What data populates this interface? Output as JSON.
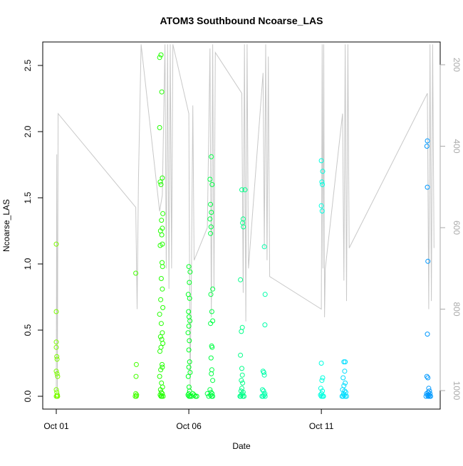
{
  "chart_data": {
    "type": "scatter",
    "title": "ATOM3 Southbound Ncoarse_LAS",
    "xlabel": "Date",
    "ylabel": "Ncoarse_LAS",
    "ylim": [
      0,
      2.62
    ],
    "y_ticks": [
      0.0,
      0.5,
      1.0,
      1.5,
      2.0,
      2.5
    ],
    "y_tick_labels": [
      "0.0",
      "0.5",
      "1.0",
      "1.5",
      "2.0",
      "2.5"
    ],
    "x_range_days": [
      0,
      14
    ],
    "x_ticks": [
      {
        "day": 0,
        "label": "Oct 01"
      },
      {
        "day": 5,
        "label": "Oct 06"
      },
      {
        "day": 10,
        "label": "Oct 11"
      }
    ],
    "secondary_axis": {
      "side": "right",
      "color": "#aaaaaa",
      "reversed": true,
      "range": [
        150,
        1030
      ],
      "ticks": [
        200,
        400,
        600,
        800,
        1000
      ],
      "tick_labels": [
        "200",
        "400",
        "600",
        "800",
        "1000"
      ]
    },
    "secondary_series": {
      "color": "#c8c8c8",
      "points": [
        [
          0.0,
          1000
        ],
        [
          0.02,
          420
        ],
        [
          0.04,
          1000
        ],
        [
          0.05,
          780
        ],
        [
          0.07,
          320
        ],
        [
          3.0,
          550
        ],
        [
          3.05,
          800
        ],
        [
          3.1,
          480
        ],
        [
          3.2,
          150
        ],
        [
          3.9,
          560
        ],
        [
          4.0,
          520
        ],
        [
          4.1,
          150
        ],
        [
          4.15,
          700
        ],
        [
          4.2,
          150
        ],
        [
          4.25,
          750
        ],
        [
          4.3,
          150
        ],
        [
          4.35,
          700
        ],
        [
          4.4,
          150
        ],
        [
          5.0,
          320
        ],
        [
          5.05,
          1000
        ],
        [
          5.1,
          700
        ],
        [
          5.15,
          300
        ],
        [
          5.2,
          680
        ],
        [
          5.7,
          600
        ],
        [
          5.8,
          160
        ],
        [
          5.85,
          820
        ],
        [
          5.9,
          150
        ],
        [
          5.95,
          750
        ],
        [
          6.0,
          170
        ],
        [
          7.0,
          270
        ],
        [
          7.05,
          760
        ],
        [
          7.1,
          150
        ],
        [
          7.15,
          830
        ],
        [
          7.2,
          150
        ],
        [
          7.25,
          700
        ],
        [
          7.8,
          220
        ],
        [
          7.85,
          650
        ],
        [
          7.9,
          150
        ],
        [
          7.95,
          680
        ],
        [
          8.0,
          180
        ],
        [
          8.05,
          720
        ],
        [
          10.0,
          800
        ],
        [
          10.03,
          150
        ],
        [
          10.06,
          700
        ],
        [
          10.09,
          150
        ],
        [
          10.12,
          820
        ],
        [
          10.15,
          700
        ],
        [
          10.8,
          320
        ],
        [
          10.85,
          730
        ],
        [
          10.9,
          150
        ],
        [
          10.95,
          780
        ],
        [
          11.0,
          150
        ],
        [
          11.05,
          650
        ],
        [
          14.0,
          270
        ],
        [
          14.05,
          800
        ],
        [
          14.1,
          150
        ],
        [
          14.15,
          780
        ],
        [
          14.2,
          150
        ],
        [
          14.25,
          650
        ]
      ]
    },
    "series": [
      {
        "color": "#7cfc00",
        "points": [
          [
            0,
            1.15
          ],
          [
            0,
            0.64
          ],
          [
            0,
            0.41
          ],
          [
            0,
            0.37
          ],
          [
            0.02,
            0.3
          ],
          [
            0.03,
            0.28
          ],
          [
            0,
            0.19
          ],
          [
            0.03,
            0.17
          ],
          [
            0.05,
            0.15
          ],
          [
            0,
            0.05
          ],
          [
            0.02,
            0.03
          ],
          [
            0.04,
            0.01
          ],
          [
            0,
            0.0
          ],
          [
            0.03,
            0.0
          ],
          [
            0.05,
            0.0
          ]
        ]
      },
      {
        "color": "#44ff00",
        "points": [
          [
            3.0,
            0.93
          ],
          [
            3.02,
            0.24
          ],
          [
            3.01,
            0.15
          ],
          [
            3.0,
            0.02
          ],
          [
            3.03,
            0.01
          ],
          [
            2.98,
            0.0
          ],
          [
            3.02,
            0.0
          ]
        ]
      },
      {
        "color": "#22ff00",
        "points": [
          [
            3.9,
            2.56
          ],
          [
            3.95,
            2.58
          ],
          [
            3.98,
            2.3
          ],
          [
            3.9,
            2.03
          ],
          [
            4.0,
            1.65
          ],
          [
            3.95,
            1.6
          ],
          [
            3.92,
            1.62
          ],
          [
            4.02,
            1.38
          ],
          [
            3.97,
            1.33
          ],
          [
            4.0,
            1.27
          ],
          [
            3.93,
            1.25
          ],
          [
            3.98,
            1.22
          ],
          [
            4.0,
            1.15
          ],
          [
            3.92,
            1.14
          ],
          [
            3.99,
            1.01
          ],
          [
            4.01,
            0.98
          ],
          [
            3.96,
            0.89
          ],
          [
            4.0,
            0.81
          ],
          [
            3.94,
            0.73
          ],
          [
            4.02,
            0.67
          ],
          [
            3.9,
            0.62
          ],
          [
            3.96,
            0.55
          ],
          [
            4.0,
            0.48
          ],
          [
            3.93,
            0.45
          ],
          [
            3.98,
            0.43
          ],
          [
            4.02,
            0.4
          ],
          [
            3.95,
            0.37
          ],
          [
            3.91,
            0.34
          ],
          [
            3.99,
            0.24
          ],
          [
            4.0,
            0.22
          ],
          [
            3.94,
            0.2
          ],
          [
            3.9,
            0.15
          ],
          [
            3.97,
            0.1
          ],
          [
            4.01,
            0.07
          ],
          [
            3.93,
            0.05
          ],
          [
            3.96,
            0.03
          ],
          [
            4.0,
            0.02
          ],
          [
            3.92,
            0.01
          ],
          [
            3.98,
            0.0
          ],
          [
            4.03,
            0.0
          ],
          [
            3.95,
            0.0
          ]
        ]
      },
      {
        "color": "#00ff22",
        "points": [
          [
            5.0,
            0.98
          ],
          [
            5.05,
            0.94
          ],
          [
            5.02,
            0.86
          ],
          [
            4.98,
            0.77
          ],
          [
            5.03,
            0.74
          ],
          [
            4.99,
            0.64
          ],
          [
            5.01,
            0.6
          ],
          [
            5.04,
            0.57
          ],
          [
            5.0,
            0.53
          ],
          [
            4.97,
            0.48
          ],
          [
            5.02,
            0.42
          ],
          [
            5.0,
            0.35
          ],
          [
            5.03,
            0.26
          ],
          [
            5.0,
            0.22
          ],
          [
            5.05,
            0.18
          ],
          [
            4.98,
            0.15
          ],
          [
            5.01,
            0.07
          ],
          [
            5.03,
            0.04
          ],
          [
            5.0,
            0.02
          ],
          [
            4.97,
            0.01
          ],
          [
            5.05,
            0.0
          ],
          [
            5.01,
            0.0
          ],
          [
            5.1,
            0.0
          ],
          [
            5.15,
            0.02
          ],
          [
            5.2,
            0.01
          ],
          [
            5.25,
            0.0
          ],
          [
            5.3,
            0.0
          ]
        ]
      },
      {
        "color": "#00ff44",
        "points": [
          [
            5.85,
            1.81
          ],
          [
            5.8,
            1.64
          ],
          [
            5.88,
            1.6
          ],
          [
            5.82,
            1.45
          ],
          [
            5.85,
            1.39
          ],
          [
            5.8,
            1.34
          ],
          [
            5.84,
            1.28
          ],
          [
            5.82,
            1.23
          ],
          [
            5.9,
            0.81
          ],
          [
            5.83,
            0.77
          ],
          [
            5.87,
            0.64
          ],
          [
            5.9,
            0.57
          ],
          [
            5.82,
            0.55
          ],
          [
            5.86,
            0.38
          ],
          [
            5.88,
            0.37
          ],
          [
            5.84,
            0.29
          ],
          [
            5.87,
            0.2
          ],
          [
            5.85,
            0.17
          ],
          [
            5.9,
            0.12
          ],
          [
            5.8,
            0.05
          ],
          [
            5.84,
            0.03
          ],
          [
            5.88,
            0.02
          ],
          [
            5.82,
            0.01
          ],
          [
            5.86,
            0.0
          ],
          [
            5.9,
            0.0
          ],
          [
            5.75,
            0.0
          ],
          [
            5.7,
            0.02
          ]
        ]
      },
      {
        "color": "#00ff88",
        "points": [
          [
            7.0,
            1.56
          ],
          [
            7.12,
            1.56
          ],
          [
            7.05,
            1.34
          ],
          [
            7.03,
            1.31
          ],
          [
            7.06,
            1.28
          ],
          [
            6.95,
            0.88
          ],
          [
            7.02,
            0.52
          ],
          [
            6.98,
            0.49
          ],
          [
            6.95,
            0.31
          ],
          [
            7.0,
            0.21
          ],
          [
            7.02,
            0.16
          ],
          [
            6.98,
            0.12
          ],
          [
            7.03,
            0.1
          ],
          [
            7.0,
            0.06
          ],
          [
            6.97,
            0.04
          ],
          [
            7.05,
            0.03
          ],
          [
            7.01,
            0.02
          ],
          [
            6.99,
            0.01
          ],
          [
            7.04,
            0.0
          ],
          [
            6.96,
            0.0
          ],
          [
            7.08,
            0.0
          ],
          [
            6.93,
            0.0
          ]
        ]
      },
      {
        "color": "#00ffaa",
        "points": [
          [
            7.85,
            1.13
          ],
          [
            7.88,
            0.77
          ],
          [
            7.87,
            0.54
          ],
          [
            7.8,
            0.19
          ],
          [
            7.83,
            0.18
          ],
          [
            7.85,
            0.16
          ],
          [
            7.78,
            0.05
          ],
          [
            7.82,
            0.04
          ],
          [
            7.87,
            0.02
          ],
          [
            7.84,
            0.01
          ],
          [
            7.8,
            0.0
          ],
          [
            7.88,
            0.0
          ],
          [
            7.76,
            0.0
          ]
        ]
      },
      {
        "color": "#00ffe0",
        "points": [
          [
            10.0,
            1.78
          ],
          [
            10.05,
            1.7
          ],
          [
            10.02,
            1.62
          ],
          [
            10.04,
            1.6
          ],
          [
            10.0,
            1.44
          ],
          [
            10.03,
            1.4
          ],
          [
            10.0,
            0.25
          ],
          [
            10.05,
            0.14
          ],
          [
            10.02,
            0.12
          ],
          [
            9.98,
            0.06
          ],
          [
            10.04,
            0.04
          ],
          [
            10.01,
            0.02
          ],
          [
            9.97,
            0.01
          ],
          [
            10.05,
            0.0
          ],
          [
            10.0,
            0.0
          ],
          [
            10.08,
            0.0
          ]
        ]
      },
      {
        "color": "#00ddff",
        "points": [
          [
            10.85,
            0.26
          ],
          [
            10.9,
            0.26
          ],
          [
            10.88,
            0.19
          ],
          [
            10.82,
            0.14
          ],
          [
            10.9,
            0.1
          ],
          [
            10.85,
            0.08
          ],
          [
            10.8,
            0.05
          ],
          [
            10.88,
            0.04
          ],
          [
            10.92,
            0.03
          ],
          [
            10.84,
            0.02
          ],
          [
            10.86,
            0.01
          ],
          [
            10.82,
            0.0
          ],
          [
            10.9,
            0.0
          ],
          [
            10.95,
            0.0
          ],
          [
            10.78,
            0.0
          ]
        ]
      },
      {
        "color": "#0099ff",
        "points": [
          [
            14.0,
            1.93
          ],
          [
            13.98,
            1.89
          ],
          [
            14.0,
            1.58
          ],
          [
            14.02,
            1.02
          ],
          [
            14.0,
            0.47
          ],
          [
            13.98,
            0.15
          ],
          [
            14.02,
            0.14
          ],
          [
            14.05,
            0.06
          ],
          [
            14.08,
            0.04
          ],
          [
            14.03,
            0.03
          ],
          [
            13.97,
            0.02
          ],
          [
            14.1,
            0.02
          ],
          [
            14.0,
            0.01
          ],
          [
            14.06,
            0.01
          ],
          [
            13.95,
            0.0
          ],
          [
            14.03,
            0.0
          ],
          [
            14.12,
            0.0
          ],
          [
            14.08,
            0.0
          ]
        ]
      }
    ]
  }
}
